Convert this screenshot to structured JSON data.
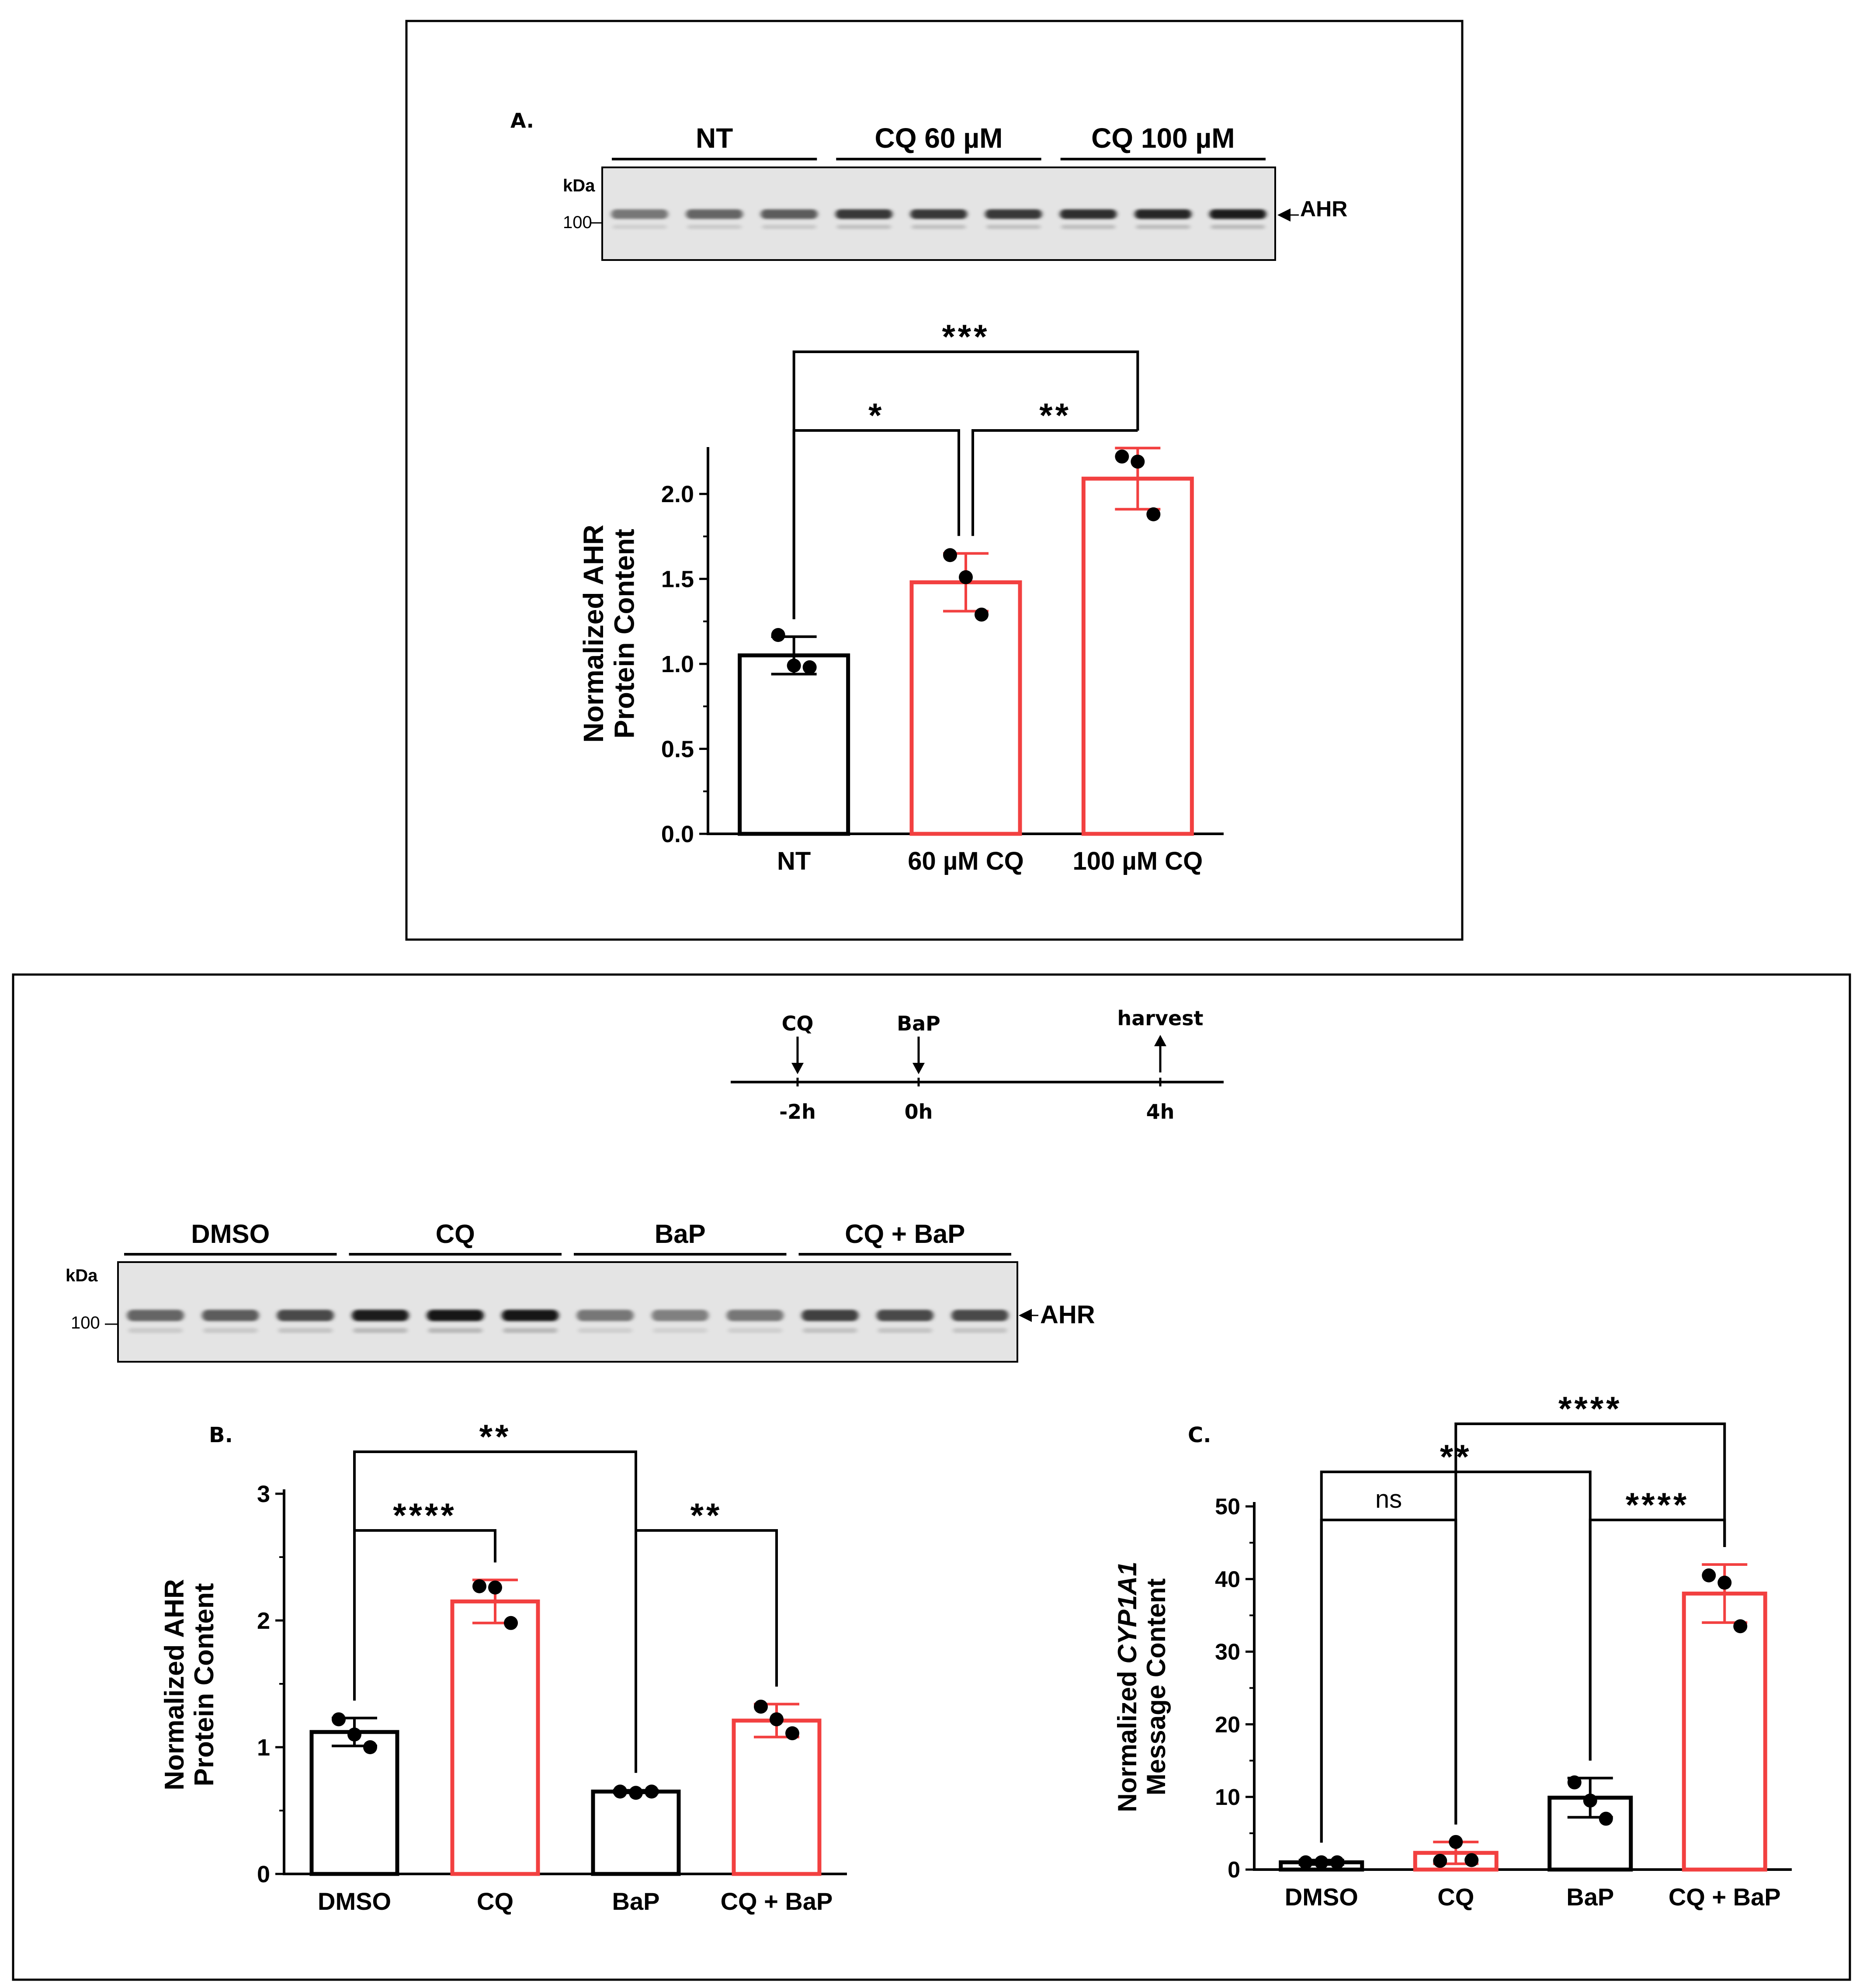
{
  "panels": {
    "a_label": "A.",
    "b_label": "B.",
    "c_label": "C."
  },
  "blot_a": {
    "group_labels": [
      "NT",
      "CQ 60 µM",
      "CQ 100 µM"
    ],
    "kda_label": "kDa",
    "marker": "100",
    "band_label": "AHR",
    "band_intensity": [
      0.45,
      0.55,
      0.6,
      0.8,
      0.8,
      0.8,
      0.85,
      0.9,
      0.95
    ]
  },
  "blot_b": {
    "group_labels": [
      "DMSO",
      "CQ",
      "BaP",
      "CQ + BaP"
    ],
    "kda_label": "kDa",
    "marker": "100",
    "band_label": "AHR",
    "band_intensity": [
      0.55,
      0.6,
      0.7,
      0.95,
      1.0,
      1.0,
      0.45,
      0.4,
      0.45,
      0.75,
      0.7,
      0.7
    ]
  },
  "timeline": {
    "events": [
      {
        "label": "CQ",
        "time": "-2h",
        "direction": "down"
      },
      {
        "label": "BaP",
        "time": "0h",
        "direction": "down"
      },
      {
        "label": "harvest",
        "time": "4h",
        "direction": "up"
      }
    ]
  },
  "colors": {
    "control": "#000000",
    "treated": "#f24040"
  },
  "chart_data": [
    {
      "type": "bar",
      "id": "A",
      "categories": [
        "NT",
        "60 µM CQ",
        "100 µM CQ"
      ],
      "values": [
        1.05,
        1.48,
        2.09
      ],
      "errors": [
        0.11,
        0.17,
        0.18
      ],
      "points": [
        [
          1.17,
          0.99,
          0.98
        ],
        [
          1.64,
          1.51,
          1.29
        ],
        [
          2.22,
          2.19,
          1.88
        ]
      ],
      "bar_colors": [
        "#000000",
        "#f24040",
        "#f24040"
      ],
      "ylabel_lines": [
        "Normalized AHR",
        "Protein Content"
      ],
      "ylim": [
        0,
        2.25
      ],
      "yticks": [
        0.0,
        0.5,
        1.0,
        1.5,
        2.0
      ],
      "ytick_labels": [
        "0.0",
        "0.5",
        "1.0",
        "1.5",
        "2.0"
      ],
      "significance": [
        {
          "from": 0,
          "to": 1,
          "label": "*"
        },
        {
          "from": 1,
          "to": 2,
          "label": "**"
        },
        {
          "from": 0,
          "to": 2,
          "label": "***"
        }
      ]
    },
    {
      "type": "bar",
      "id": "B",
      "categories": [
        "DMSO",
        "CQ",
        "BaP",
        "CQ + BaP"
      ],
      "values": [
        1.12,
        2.15,
        0.65,
        1.21
      ],
      "errors": [
        0.11,
        0.17,
        0.01,
        0.13
      ],
      "points": [
        [
          1.22,
          1.1,
          1.0
        ],
        [
          2.27,
          2.26,
          1.98
        ],
        [
          0.65,
          0.64,
          0.65
        ],
        [
          1.32,
          1.22,
          1.11
        ]
      ],
      "bar_colors": [
        "#000000",
        "#f24040",
        "#000000",
        "#f24040"
      ],
      "ylabel_lines": [
        "Normalized AHR",
        "Protein Content"
      ],
      "ylim": [
        0,
        3
      ],
      "yticks": [
        0,
        1,
        2,
        3
      ],
      "ytick_labels": [
        "0",
        "1",
        "2",
        "3"
      ],
      "significance": [
        {
          "from": 0,
          "to": 1,
          "label": "****"
        },
        {
          "from": 2,
          "to": 3,
          "label": "**"
        },
        {
          "from": 0,
          "to": 2,
          "label": "**"
        }
      ]
    },
    {
      "type": "bar",
      "id": "C",
      "categories": [
        "DMSO",
        "CQ",
        "BaP",
        "CQ + BaP"
      ],
      "values": [
        1.0,
        2.3,
        9.9,
        38.0
      ],
      "errors": [
        0.3,
        1.5,
        2.7,
        4.0
      ],
      "points": [
        [
          1.0,
          1.0,
          1.0
        ],
        [
          1.2,
          3.8,
          1.3
        ],
        [
          12.0,
          9.5,
          7.0
        ],
        [
          40.5,
          39.5,
          33.5
        ]
      ],
      "bar_colors": [
        "#000000",
        "#f24040",
        "#000000",
        "#f24040"
      ],
      "ylabel_parts": [
        "Normalized ",
        "CYP1A1",
        "Message Content"
      ],
      "ylim": [
        0,
        50
      ],
      "yticks": [
        0,
        10,
        20,
        30,
        40,
        50
      ],
      "ytick_labels": [
        "0",
        "10",
        "20",
        "30",
        "40",
        "50"
      ],
      "significance": [
        {
          "from": 0,
          "to": 1,
          "label": "ns"
        },
        {
          "from": 2,
          "to": 3,
          "label": "****"
        },
        {
          "from": 0,
          "to": 2,
          "label": "**"
        },
        {
          "from": 1,
          "to": 3,
          "label": "****"
        }
      ]
    }
  ]
}
